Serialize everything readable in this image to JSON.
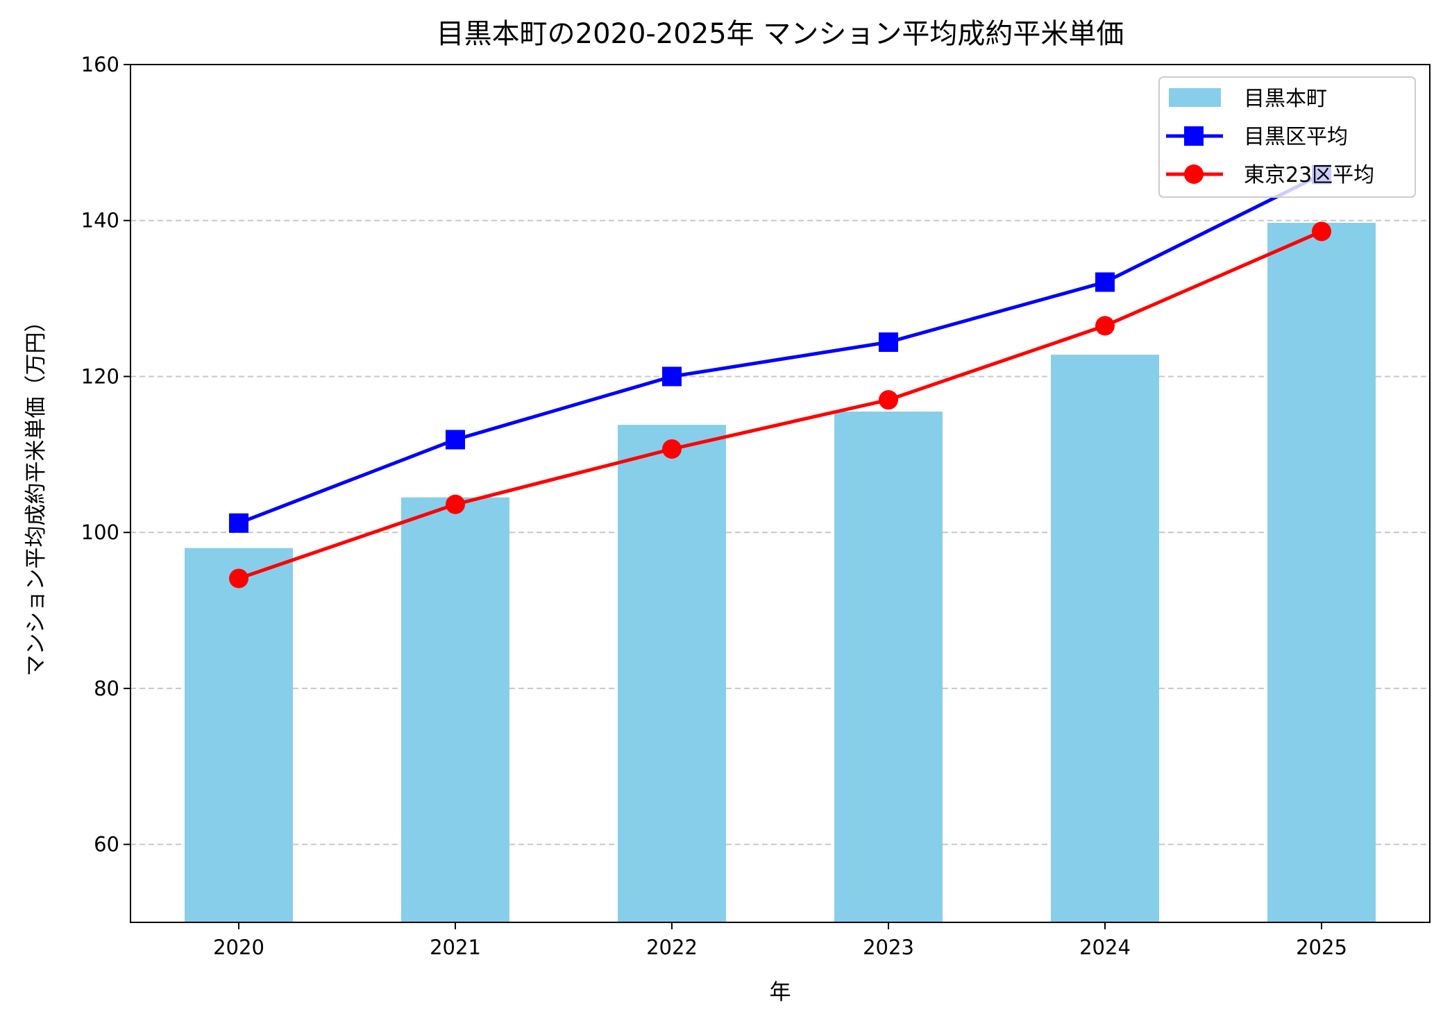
{
  "chart_data": {
    "type": "bar",
    "title": "目黒本町の2020-2025年 マンション平均成約平米単価",
    "xlabel": "年",
    "ylabel": "マンション平均成約平米単価（万円）",
    "categories": [
      "2020",
      "2021",
      "2022",
      "2023",
      "2024",
      "2025"
    ],
    "ylim": [
      50,
      160
    ],
    "yticks": [
      60,
      80,
      100,
      120,
      140,
      160
    ],
    "grid": "y-dashed",
    "legend_position": "top-right",
    "series": [
      {
        "name": "目黒本町",
        "kind": "bar",
        "color": "#87ceeb",
        "values": [
          98.0,
          104.5,
          113.8,
          115.5,
          122.8,
          139.7
        ]
      },
      {
        "name": "目黒区平均",
        "kind": "line",
        "marker": "square",
        "color": "#0000ff",
        "values": [
          101.2,
          111.9,
          120.0,
          124.4,
          132.1,
          145.9
        ]
      },
      {
        "name": "東京23区平均",
        "kind": "line",
        "marker": "circle",
        "color": "#ff0000",
        "values": [
          94.1,
          103.6,
          110.7,
          117.0,
          126.5,
          138.6
        ]
      }
    ]
  }
}
